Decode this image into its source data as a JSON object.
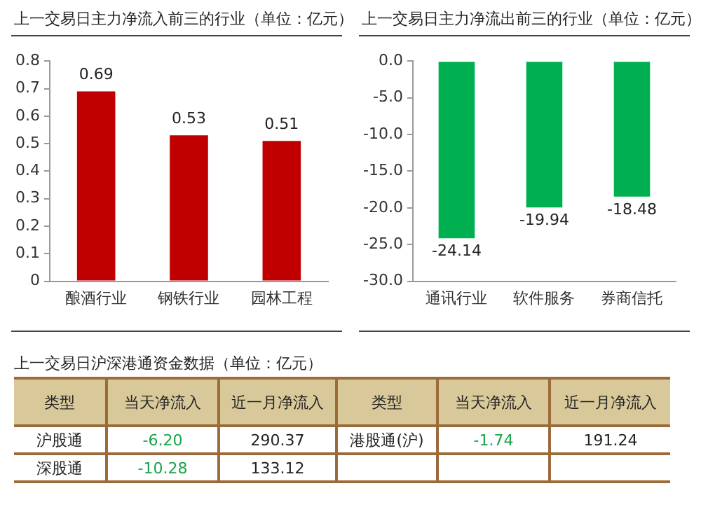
{
  "chart_data": [
    {
      "type": "bar",
      "title": "上一交易日主力净流入前三的行业（单位：亿元）",
      "categories": [
        "酿酒行业",
        "钢铁行业",
        "园林工程"
      ],
      "values": [
        0.69,
        0.53,
        0.51
      ],
      "color": "#c00000",
      "ylim": [
        0,
        0.8
      ],
      "yticks": [
        0,
        0.1,
        0.2,
        0.3,
        0.4,
        0.5,
        0.6,
        0.7,
        0.8
      ],
      "grid": false,
      "legend": false,
      "data_labels": true
    },
    {
      "type": "bar",
      "title": "上一交易日主力净流出前三的行业（单位：亿元）",
      "categories": [
        "通讯行业",
        "软件服务",
        "券商信托"
      ],
      "values": [
        -24.14,
        -19.94,
        -18.48
      ],
      "color": "#00b050",
      "ylim": [
        -30,
        0
      ],
      "yticks": [
        {
          "value": 0,
          "label": "0.0"
        },
        {
          "value": -5,
          "label": "-5.0"
        },
        {
          "value": -10,
          "label": "-10.0"
        },
        {
          "value": -15,
          "label": "-15.0"
        },
        {
          "value": -20,
          "label": "-20.0"
        },
        {
          "value": -25,
          "label": "-25.0"
        },
        {
          "value": -30,
          "label": "-30.0"
        }
      ],
      "grid": false,
      "legend": false,
      "data_labels": true
    },
    {
      "type": "other",
      "title": "上一交易日沪深港通资金数据（单位：亿元）",
      "annotations": [
        "类型",
        "当天净流入",
        "近一月净流入",
        "类型",
        "当天净流入",
        "近一月净流入",
        "沪股通",
        "-6.20",
        "290.37",
        "港股通(沪)",
        "-1.74",
        "191.24",
        "深股通",
        "-10.28",
        "133.12"
      ]
    }
  ]
}
